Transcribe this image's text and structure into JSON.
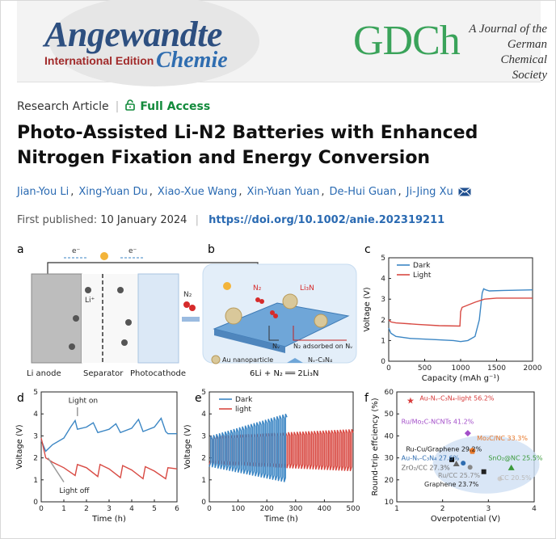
{
  "journal": {
    "name_main": "Angewandte",
    "edition": "International Edition",
    "chemie": "Chemie",
    "society_logo": "GDCh",
    "society_line1": "A Journal of the",
    "society_line2": "German",
    "society_line3": "Chemical Society"
  },
  "article": {
    "type": "Research Article",
    "access": "Full Access",
    "title": "Photo-Assisted Li-N2 Batteries with Enhanced Nitrogen Fixation and Energy Conversion",
    "authors": [
      "Jian-You Li",
      "Xing-Yuan Du",
      "Xiao-Xue Wang",
      "Xin-Yuan Yuan",
      "De-Hui Guan",
      "Ji-Jing Xu"
    ],
    "published_label": "First published:",
    "published_date": "10 January 2024",
    "doi": "https://doi.org/10.1002/anie.202319211"
  },
  "figure": {
    "panels": [
      "a",
      "b",
      "c",
      "d",
      "e",
      "f"
    ],
    "a": {
      "electron_left": "e⁻",
      "electron_right": "e⁻",
      "li_ion": "Li⁺",
      "gas": "N₂",
      "labels": [
        "Li anode",
        "Separator",
        "Photocathode"
      ]
    },
    "b": {
      "n2": "N₂",
      "li3n": "Li₃N",
      "nv": "Nᵥ",
      "adsorbed": "N₂ adsorbed on Nᵥ",
      "legend_au": "Au nanoparticle",
      "legend_cn": "Nᵥ-C₃N₄",
      "equation": "6Li + N₂ ══ 2Li₃N"
    }
  },
  "chart_data": [
    {
      "panel": "c",
      "type": "line",
      "xlabel": "Capacity (mAh g⁻¹)",
      "ylabel": "Voltage (V)",
      "xlim": [
        0,
        2000
      ],
      "ylim": [
        0,
        5
      ],
      "xticks": [
        0,
        500,
        1000,
        1500,
        2000
      ],
      "yticks": [
        0,
        1,
        2,
        3,
        4,
        5
      ],
      "legend": "top-left",
      "series": [
        {
          "name": "Dark",
          "color": "#3b86c4",
          "x": [
            0,
            30,
            100,
            300,
            600,
            900,
            1000,
            1100,
            1200,
            1260,
            1300,
            1320,
            1350,
            1400,
            1600,
            2000
          ],
          "y": [
            1.6,
            1.35,
            1.2,
            1.1,
            1.05,
            1.0,
            0.95,
            1.0,
            1.2,
            2.0,
            3.3,
            3.5,
            3.45,
            3.4,
            3.42,
            3.45
          ]
        },
        {
          "name": "Light",
          "color": "#d84a43",
          "x": [
            0,
            30,
            100,
            400,
            700,
            990,
            1000,
            1020,
            1200,
            1330,
            1500,
            2000
          ],
          "y": [
            2.0,
            1.9,
            1.85,
            1.78,
            1.72,
            1.7,
            2.4,
            2.6,
            2.85,
            3.0,
            3.05,
            3.05
          ]
        }
      ]
    },
    {
      "panel": "d",
      "type": "line",
      "xlabel": "Time (h)",
      "ylabel": "Voltage (V)",
      "xlim": [
        0,
        6
      ],
      "ylim": [
        0,
        5
      ],
      "xticks": [
        0,
        1,
        2,
        3,
        4,
        5,
        6
      ],
      "yticks": [
        0,
        1,
        2,
        3,
        4,
        5
      ],
      "annotations": [
        "Light on",
        "Light off"
      ],
      "series": [
        {
          "name": "",
          "color": "#3b86c4",
          "x": [
            0,
            0.2,
            0.5,
            1.0,
            1.3,
            1.5,
            1.6,
            2.0,
            2.3,
            2.5,
            3.0,
            3.3,
            3.5,
            4.0,
            4.3,
            4.5,
            5.0,
            5.3,
            5.5,
            5.6,
            6.0
          ],
          "y": [
            2.8,
            2.3,
            2.6,
            2.9,
            3.4,
            3.7,
            3.3,
            3.4,
            3.6,
            3.15,
            3.3,
            3.55,
            3.15,
            3.35,
            3.75,
            3.2,
            3.4,
            3.8,
            3.2,
            3.1,
            3.1
          ]
        },
        {
          "name": "",
          "color": "#d84a43",
          "x": [
            0,
            0.2,
            0.5,
            1.0,
            1.5,
            1.6,
            2.0,
            2.5,
            2.6,
            3.0,
            3.5,
            3.6,
            4.0,
            4.5,
            4.6,
            5.0,
            5.5,
            5.6,
            6.0
          ],
          "y": [
            2.9,
            2.0,
            1.8,
            1.55,
            1.2,
            1.7,
            1.55,
            1.15,
            1.7,
            1.5,
            1.1,
            1.65,
            1.45,
            1.05,
            1.6,
            1.4,
            1.05,
            1.55,
            1.5
          ]
        }
      ]
    },
    {
      "panel": "e",
      "type": "line",
      "xlabel": "Time (h)",
      "ylabel": "Voltage (V)",
      "xlim": [
        0,
        500
      ],
      "ylim": [
        0,
        5
      ],
      "xticks": [
        0,
        100,
        200,
        300,
        400,
        500
      ],
      "yticks": [
        0,
        1,
        2,
        3,
        4,
        5
      ],
      "legend": "top-left",
      "series": [
        {
          "name": "Dark",
          "color": "#3b86c4",
          "x_range": [
            0,
            270
          ],
          "cycles": 27,
          "charge_start": 3.0,
          "charge_end": 4.0,
          "discharge_start": 1.6,
          "discharge_end": 0.9
        },
        {
          "name": "light",
          "color": "#d84a43",
          "x_range": [
            0,
            500
          ],
          "cycles": 50,
          "charge_start": 3.0,
          "charge_end": 3.3,
          "discharge_start": 1.7,
          "discharge_end": 1.4
        }
      ]
    },
    {
      "panel": "f",
      "type": "scatter",
      "xlabel": "Overpotential (V)",
      "ylabel": "Round-trip effciency (%)",
      "xlim": [
        1,
        4
      ],
      "ylim": [
        10,
        60
      ],
      "xticks": [
        1,
        2,
        3,
        4
      ],
      "yticks": [
        10,
        20,
        30,
        40,
        50,
        60
      ],
      "points": [
        {
          "label": "Au-Nᵥ-C₃N₄-light 56.2%",
          "x": 1.3,
          "y": 56.2,
          "color": "#d83a3a",
          "marker": "star"
        },
        {
          "label": "Ru/Mo₂C-NCNTs 41.2%",
          "x": 2.55,
          "y": 41.2,
          "color": "#a34ec9",
          "marker": "diamond"
        },
        {
          "label": "Mo₂C/NC 33.3%",
          "x": 2.65,
          "y": 33.3,
          "color": "#e8782a",
          "marker": "pentagon"
        },
        {
          "label": "Ru-Cu/Graphene 29.2%",
          "x": 2.2,
          "y": 29.2,
          "color": "#111111",
          "marker": "square"
        },
        {
          "label": "Au-Nᵥ-C₃N₄ 27.6%",
          "x": 2.45,
          "y": 27.6,
          "color": "#2f6db0",
          "marker": "circle"
        },
        {
          "label": "SnO₂@NC 25.5%",
          "x": 3.5,
          "y": 25.5,
          "color": "#3a9a3a",
          "marker": "triangle"
        },
        {
          "label": "ZrO₂/CC 27.3%",
          "x": 2.3,
          "y": 27.3,
          "color": "#666666",
          "marker": "triangle"
        },
        {
          "label": "Ru/CC 25.7%",
          "x": 2.6,
          "y": 25.7,
          "color": "#888888",
          "marker": "circle"
        },
        {
          "label": "Graphene 23.7%",
          "x": 2.9,
          "y": 23.7,
          "color": "#222222",
          "marker": "square"
        },
        {
          "label": "CC 20.5%",
          "x": 3.25,
          "y": 20.5,
          "color": "#cccccc",
          "marker": "circle"
        }
      ]
    }
  ]
}
